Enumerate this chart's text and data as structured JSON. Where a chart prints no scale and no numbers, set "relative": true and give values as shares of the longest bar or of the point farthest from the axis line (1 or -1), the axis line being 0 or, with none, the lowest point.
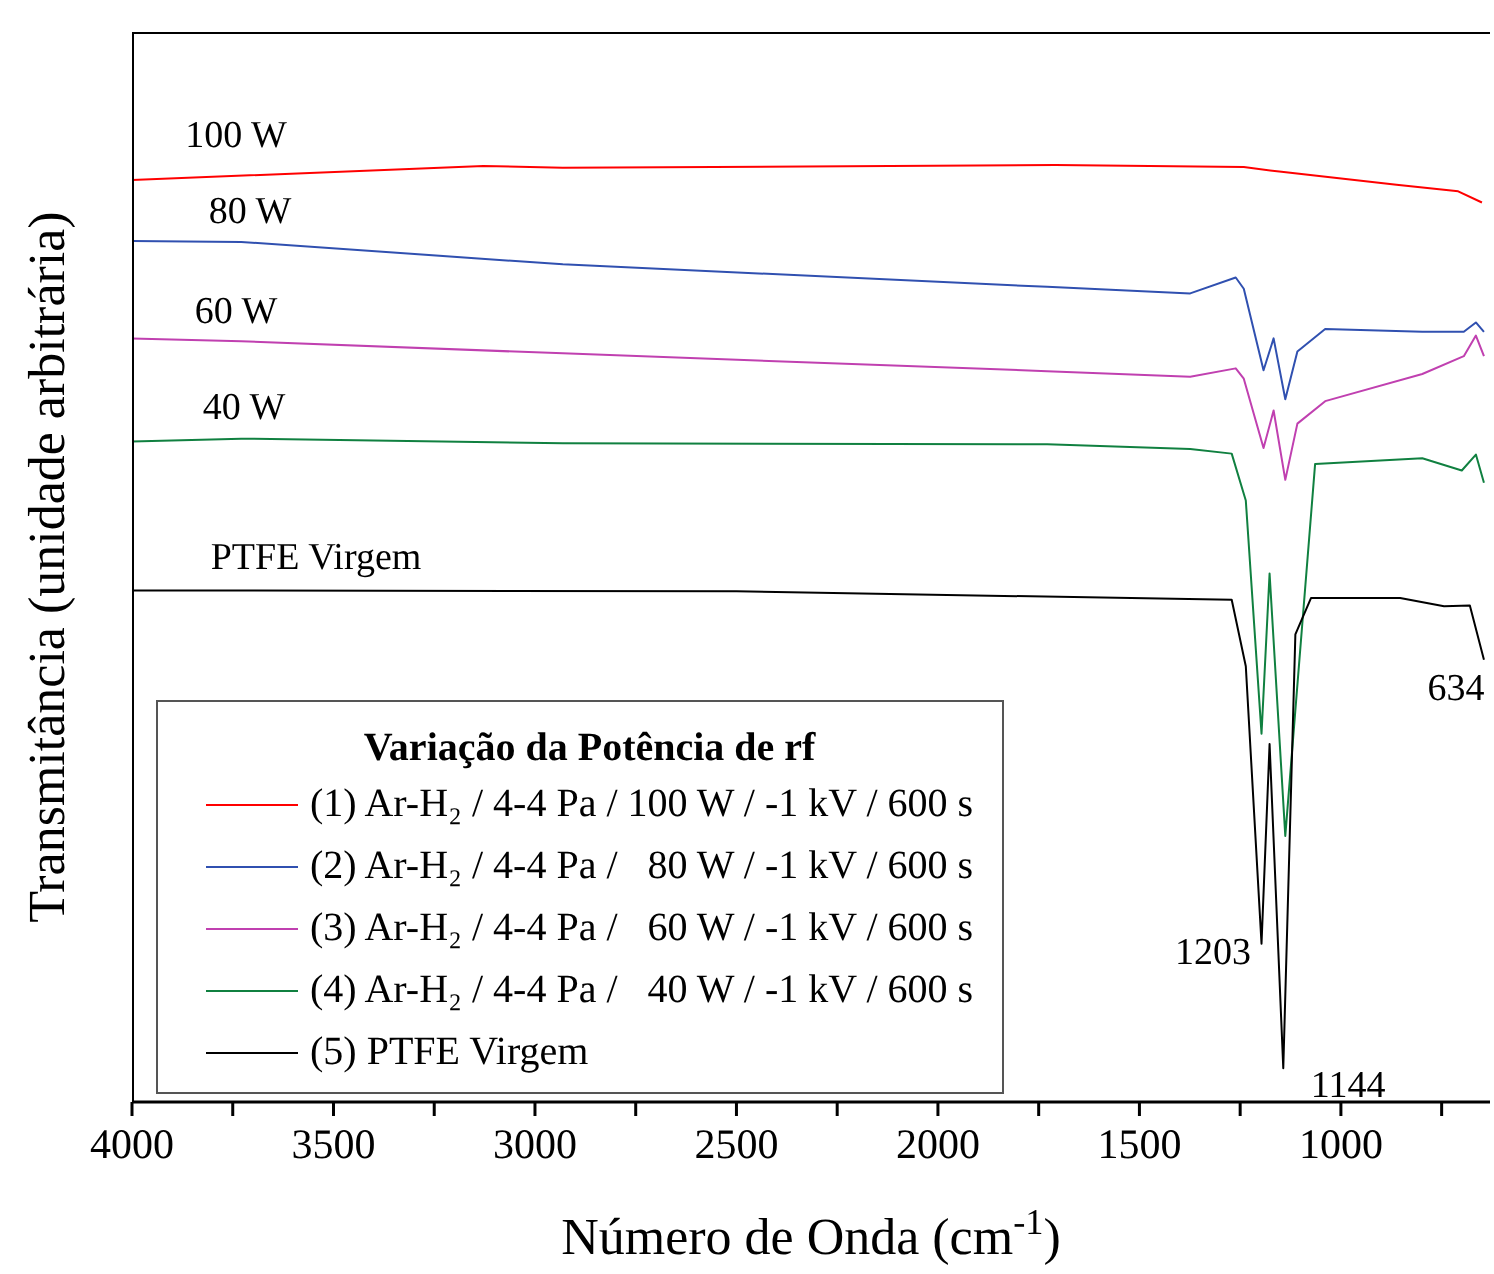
{
  "chart_data": {
    "type": "line",
    "relative": true,
    "xlabel": "Número de Onda (cm$^{-1}$)",
    "ylabel": "Transmitância (unidade arbitrária)",
    "legend_title": "Variação da Potência de rf",
    "legend": "bottom left",
    "grid": false,
    "marker": "none",
    "line_style": "solid",
    "xlim": [
      4000,
      630
    ],
    "xticks": [
      4000,
      {
        "value": 3750,
        "label": null
      },
      3500,
      {
        "value": 3250,
        "label": null
      },
      3000,
      {
        "value": 2750,
        "label": null
      },
      2500,
      {
        "value": 2250,
        "label": null
      },
      2000,
      {
        "value": 1750,
        "label": null
      },
      1500,
      {
        "value": 1250,
        "label": null
      },
      1000,
      {
        "value": 750,
        "label": null
      }
    ],
    "series": [
      {
        "name": "(1) Ar-H₂ / 4-4 Pa / 100 W / -1 kV / 600 s",
        "color": "#ff0000",
        "x": [
          4000,
          3128,
          2931,
          1709,
          1241,
          1153,
          862,
          709,
          650
        ],
        "values": [
          0.984,
          0.999,
          0.997,
          1.0,
          0.998,
          0.993,
          0.979,
          0.972,
          0.96
        ]
      },
      {
        "name": "(2) Ar-H₂ / 4-4 Pa /   80 W / -1 kV / 600 s",
        "color": "#3050b0",
        "x": [
          4000,
          3729,
          2931,
          1729,
          1374,
          1261,
          1241,
          1192,
          1167,
          1138,
          1108,
          1039,
          798,
          695,
          665,
          645
        ],
        "values": [
          0.919,
          0.918,
          0.894,
          0.87,
          0.863,
          0.88,
          0.868,
          0.781,
          0.815,
          0.75,
          0.801,
          0.825,
          0.822,
          0.822,
          0.832,
          0.822
        ]
      },
      {
        "name": "(3) Ar-H₂ / 4-4 Pa /   60 W / -1 kV / 600 s",
        "color": "#c040b0",
        "x": [
          4000,
          3729,
          2931,
          1729,
          1374,
          1261,
          1241,
          1192,
          1167,
          1138,
          1108,
          1039,
          798,
          695,
          665,
          645
        ],
        "values": [
          0.815,
          0.812,
          0.799,
          0.78,
          0.774,
          0.783,
          0.772,
          0.698,
          0.738,
          0.664,
          0.724,
          0.748,
          0.777,
          0.796,
          0.818,
          0.796
        ]
      },
      {
        "name": "(4) Ar-H₂ / 4-4 Pa /   40 W / -1 kV / 600 s",
        "color": "#108040",
        "x": [
          4000,
          3729,
          2931,
          1729,
          1374,
          1271,
          1236,
          1197,
          1177,
          1138,
          1064,
          798,
          700,
          665,
          645
        ],
        "values": [
          0.705,
          0.708,
          0.703,
          0.702,
          0.697,
          0.692,
          0.642,
          0.393,
          0.564,
          0.284,
          0.681,
          0.687,
          0.674,
          0.691,
          0.661
        ]
      },
      {
        "name": "(5) PTFE Virgem",
        "color": "#000000",
        "x": [
          4000,
          2500,
          1271,
          1236,
          1197,
          1177,
          1143,
          1113,
          1074,
          853,
          744,
          680,
          645
        ],
        "values": [
          0.546,
          0.545,
          0.536,
          0.465,
          0.169,
          0.382,
          0.036,
          0.499,
          0.538,
          0.538,
          0.529,
          0.53,
          0.472
        ]
      }
    ],
    "annotations": [
      "100 W",
      "80 W",
      "60 W",
      "40 W",
      "PTFE Virgem",
      {
        "text": "1203",
        "x": 1203,
        "y": 0.169
      },
      {
        "text": "1144",
        "x": 1144,
        "y": 0.036
      },
      {
        "text": "634",
        "x": 634,
        "y": 0.472
      }
    ]
  }
}
